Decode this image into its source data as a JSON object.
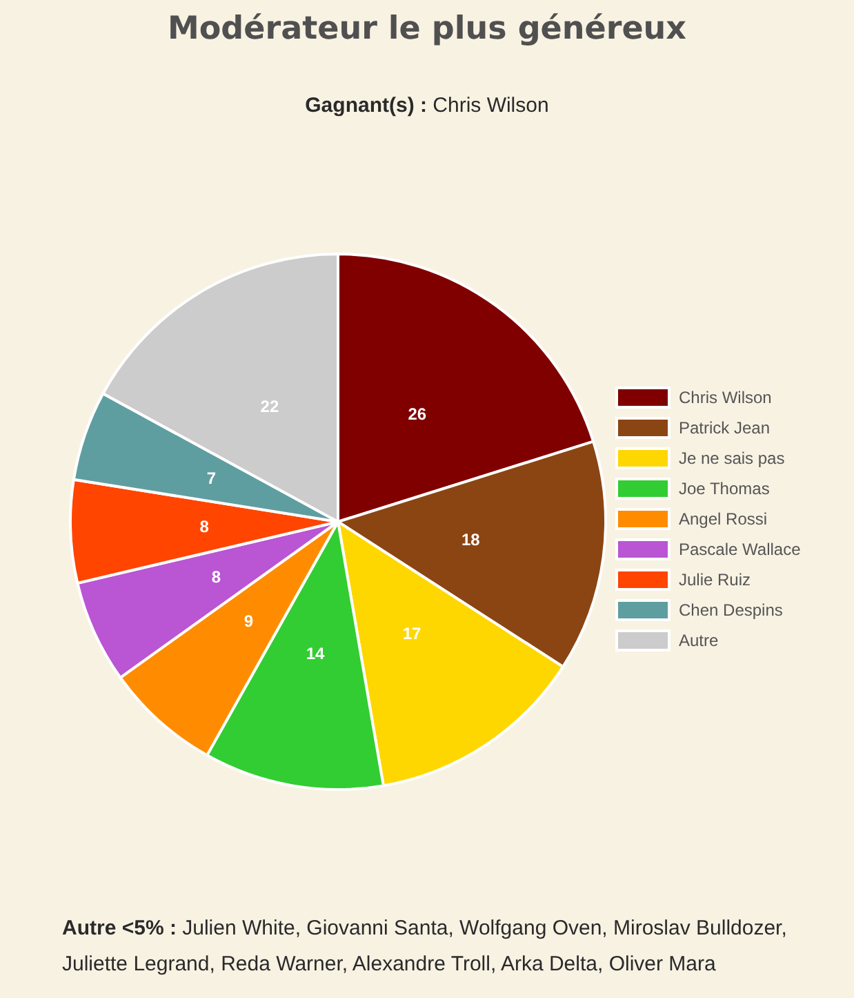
{
  "chart_data": {
    "type": "pie",
    "title": "Modérateur le plus généreux",
    "subtitle": "Gagnant(s) : Chris Wilson",
    "categories": [
      "Chris Wilson",
      "Patrick Jean",
      "Je ne sais pas",
      "Joe Thomas",
      "Angel Rossi",
      "Pascale Wallace",
      "Julie Ruiz",
      "Chen Despins",
      "Autre"
    ],
    "values": [
      26,
      18,
      17,
      14,
      9,
      8,
      8,
      7,
      22
    ],
    "colors": [
      "#800000",
      "#8b4513",
      "#ffd700",
      "#32cd32",
      "#ff8c00",
      "#ba55d3",
      "#ff4500",
      "#5f9ea0",
      "#cccccc"
    ],
    "data_labels": true,
    "legend": "right",
    "annotations": [
      "Autre <5% : Julien White, Giovanni Santa, Wolfgang Oven, Miroslav Bulldozer, Juliette Legrand, Reda Warner, Alexandre Troll, Arka Delta, Oliver Mara"
    ]
  }
}
